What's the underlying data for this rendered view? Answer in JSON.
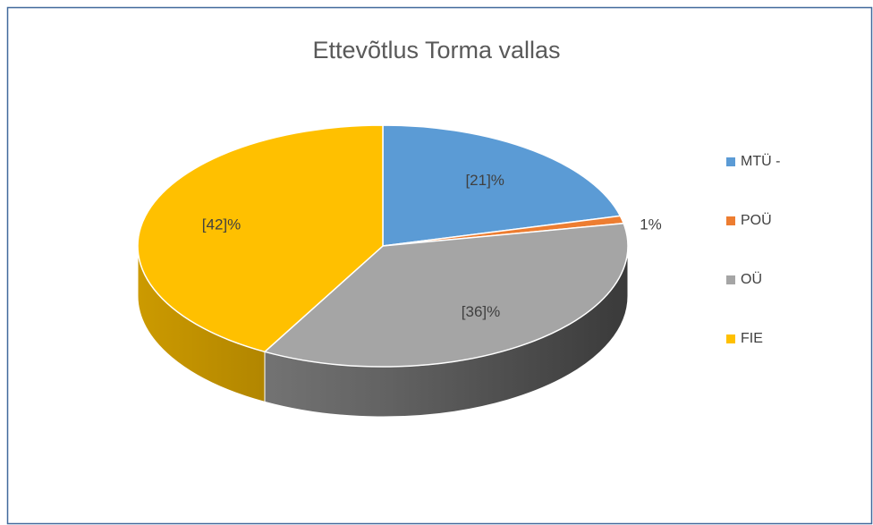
{
  "chart_data": {
    "type": "pie",
    "title": "Ettevõtlus Torma vallas",
    "categories": [
      "MTÜ -",
      "POÜ",
      "OÜ",
      "FIE"
    ],
    "values": [
      21,
      1,
      36,
      42
    ],
    "value_labels": [
      "[21]%",
      "1%",
      "[36]%",
      "[42]%"
    ],
    "colors": [
      "#5b9bd5",
      "#ed7d31",
      "#a5a5a5",
      "#ffc000"
    ],
    "legend": "right"
  }
}
